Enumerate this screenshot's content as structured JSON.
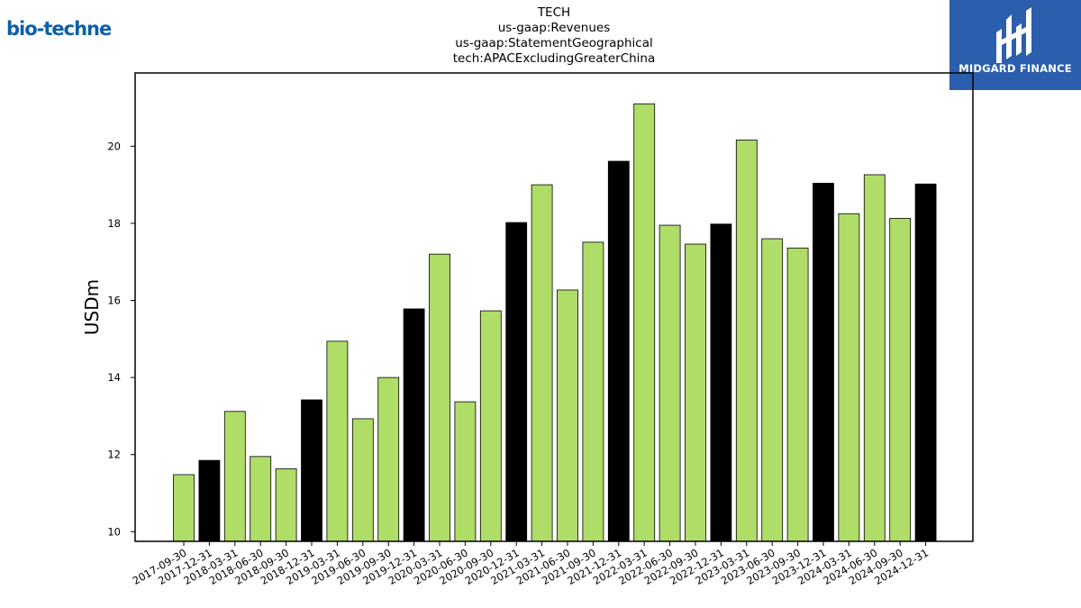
{
  "header": {
    "title_lines": [
      "TECH",
      "us-gaap:Revenues",
      "us-gaap:StatementGeographical",
      "tech:APACExcludingGreaterChina"
    ]
  },
  "logos": {
    "left_text": "bio-techne",
    "left_color": "#0d5fa6",
    "right_text": "MIDGARD FINANCE",
    "right_bg": "#2b5ead"
  },
  "chart_data": {
    "type": "bar",
    "title": "TECH\nus-gaap:Revenues\nus-gaap:StatementGeographical\ntech:APACExcludingGreaterChina",
    "xlabel": "",
    "ylabel": "USDm",
    "ylim": [
      9.75,
      21.9
    ],
    "yticks": [
      10,
      12,
      14,
      16,
      18,
      20
    ],
    "grid": false,
    "colors": {
      "quarter": "#b0dc68",
      "year_end": "#000000",
      "edge": "#000000"
    },
    "categories": [
      "2017-09-30",
      "2017-12-31",
      "2018-03-31",
      "2018-06-30",
      "2018-09-30",
      "2018-12-31",
      "2019-03-31",
      "2019-06-30",
      "2019-09-30",
      "2019-12-31",
      "2020-03-31",
      "2020-06-30",
      "2020-09-30",
      "2020-12-31",
      "2021-03-31",
      "2021-06-30",
      "2021-09-30",
      "2021-12-31",
      "2022-03-31",
      "2022-06-30",
      "2022-09-30",
      "2022-12-31",
      "2023-03-31",
      "2023-06-30",
      "2023-09-30",
      "2023-12-31",
      "2024-03-31",
      "2024-06-30",
      "2024-09-30",
      "2024-12-31"
    ],
    "values": [
      11.48,
      11.85,
      13.12,
      11.95,
      11.63,
      13.42,
      14.94,
      12.93,
      14.0,
      15.78,
      17.2,
      13.37,
      15.73,
      18.02,
      19.0,
      16.27,
      17.51,
      19.61,
      21.1,
      17.95,
      17.46,
      17.98,
      20.16,
      17.6,
      17.36,
      19.04,
      18.25,
      19.26,
      18.13,
      19.02
    ],
    "highlight": [
      false,
      true,
      false,
      false,
      false,
      true,
      false,
      false,
      false,
      true,
      false,
      false,
      false,
      true,
      false,
      false,
      false,
      true,
      false,
      false,
      false,
      true,
      false,
      false,
      false,
      true,
      false,
      false,
      false,
      true
    ]
  }
}
